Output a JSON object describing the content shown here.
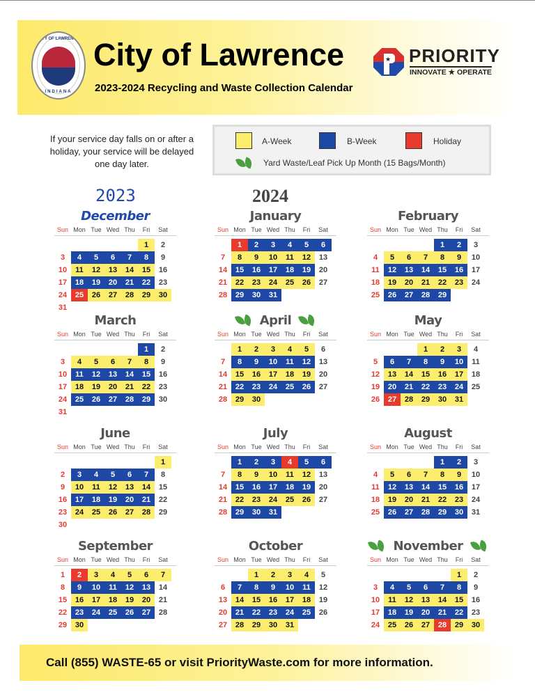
{
  "header": {
    "title": "City of Lawrence",
    "subtitle": "2023-2024 Recycling and Waste Collection Calendar",
    "seal_text_top": "CITY OF LAWRENCE",
    "seal_text_bottom": "INDIANA",
    "partner_name": "PRIORITY",
    "partner_tagline": "INNOVATE ★ OPERATE"
  },
  "note": "If your service day falls on or after a holiday, your service will be delayed one day later.",
  "legend": {
    "a_week": "A-Week",
    "b_week": "B-Week",
    "holiday": "Holiday",
    "yard_waste": "Yard Waste/Leaf Pick Up Month (15 Bags/Month)",
    "colors": {
      "A": "#fcee6c",
      "B": "#1e48a6",
      "H": "#e83a2d",
      "leaf": "#4aa040"
    }
  },
  "years": [
    "2023",
    "2024"
  ],
  "weekdays": [
    "Sun",
    "Mon",
    "Tue",
    "Wed",
    "Thu",
    "Fri",
    "Sat"
  ],
  "months": [
    {
      "name": "December",
      "start_weekday": "Fri",
      "days": 31,
      "marks": "A--BBBBB--AAAAA--BBBBB--HAAAAA-",
      "yard_waste": false
    },
    {
      "name": "January",
      "start_weekday": "Mon",
      "days": 31,
      "marks": "HBBBBB-AAAAA--BBBBB--AAAAA--BBB",
      "yard_waste": false
    },
    {
      "name": "February",
      "start_weekday": "Thu",
      "days": 29,
      "marks": "BB--AAAAA--BBBBB--AAAAA--BBBB",
      "yard_waste": false
    },
    {
      "name": "March",
      "start_weekday": "Fri",
      "days": 31,
      "marks": "B--AAAAA--BBBBB--AAAAA--BBBBB--",
      "yard_waste": false
    },
    {
      "name": "April",
      "start_weekday": "Mon",
      "days": 30,
      "marks": "AAAAA--BBBBB--AAAAA--BBBBB--AA",
      "yard_waste": true
    },
    {
      "name": "May",
      "start_weekday": "Wed",
      "days": 31,
      "marks": "AAA--BBBBB--AAAAA--BBBBB--HAAAA",
      "yard_waste": false
    },
    {
      "name": "June",
      "start_weekday": "Sat",
      "days": 30,
      "marks": "A-BBBBB--AAAAA--BBBBB--AAAAA--",
      "yard_waste": false
    },
    {
      "name": "July",
      "start_weekday": "Mon",
      "days": 31,
      "marks": "BBBHBB-AAAAA--BBBBB--AAAAA--BBB",
      "yard_waste": false
    },
    {
      "name": "August",
      "start_weekday": "Thu",
      "days": 31,
      "marks": "BB--AAAAA--BBBBB--AAAAA--BBBBB-",
      "yard_waste": false
    },
    {
      "name": "September",
      "start_weekday": "Sun",
      "days": 30,
      "marks": "-HAAAAA-BBBBB--AAAAA--BBBBB--A",
      "yard_waste": false
    },
    {
      "name": "October",
      "start_weekday": "Tue",
      "days": 31,
      "marks": "AAAA--BBBBB--AAAAA--BBBBB--AAAA",
      "yard_waste": false
    },
    {
      "name": "November",
      "start_weekday": "Fri",
      "days": 30,
      "marks": "A--BBBBB--AAAAA--BBBBB--AAAHAA",
      "yard_waste": true
    }
  ],
  "footer": "Call (855) WASTE-65 or visit PriorityWaste.com for more information."
}
